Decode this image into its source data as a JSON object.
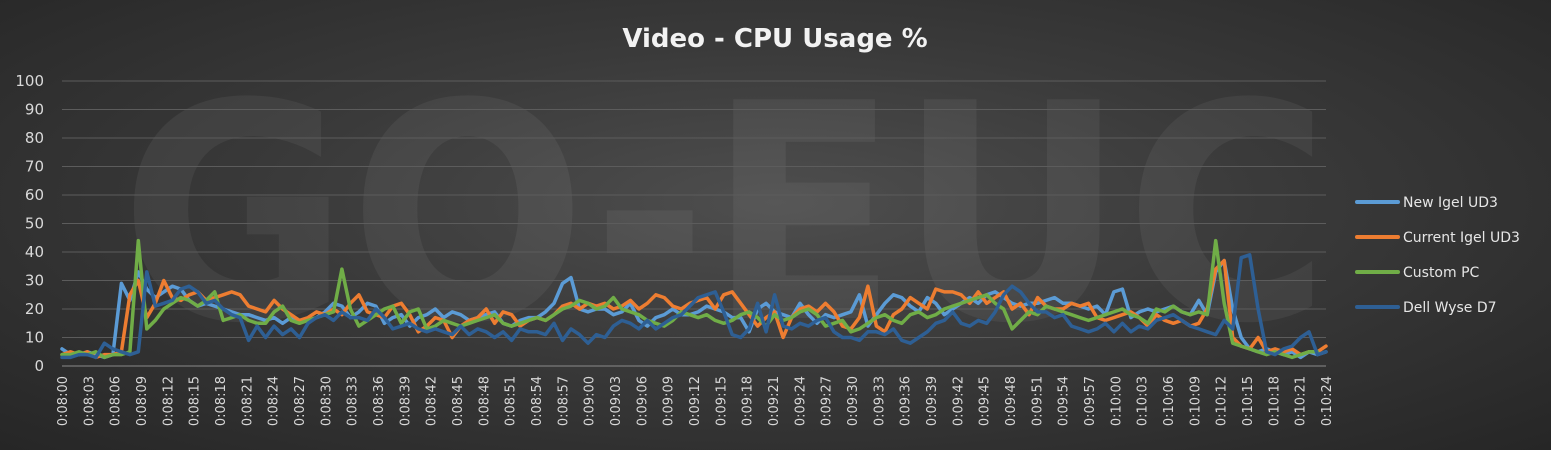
{
  "chart_data": {
    "type": "line",
    "title": "Video - CPU Usage %",
    "watermark": "GO-EUC",
    "xlabel": "",
    "ylabel": "",
    "ylim": [
      0,
      100
    ],
    "yticks": [
      0,
      10,
      20,
      30,
      40,
      50,
      60,
      70,
      80,
      90,
      100
    ],
    "grid": true,
    "legend_position": "right",
    "x_tick_labels": [
      "0:08:00",
      "0:08:03",
      "0:08:06",
      "0:08:09",
      "0:08:12",
      "0:08:15",
      "0:08:18",
      "0:08:21",
      "0:08:24",
      "0:08:27",
      "0:08:30",
      "0:08:33",
      "0:08:36",
      "0:08:39",
      "0:08:42",
      "0:08:45",
      "0:08:48",
      "0:08:51",
      "0:08:54",
      "0:08:57",
      "0:09:00",
      "0:09:03",
      "0:09:06",
      "0:09:09",
      "0:09:12",
      "0:09:15",
      "0:09:18",
      "0:09:21",
      "0:09:24",
      "0:09:27",
      "0:09:30",
      "0:09:33",
      "0:09:36",
      "0:09:39",
      "0:09:42",
      "0:09:45",
      "0:09:48",
      "0:09:51",
      "0:09:54",
      "0:09:57",
      "0:10:00",
      "0:10:03",
      "0:10:06",
      "0:10:09",
      "0:10:12",
      "0:10:15",
      "0:10:18",
      "0:10:21",
      "0:10:24"
    ],
    "series": [
      {
        "name": "New Igel UD3",
        "color": "#5b9bd5",
        "values": [
          6,
          4,
          4,
          5,
          4,
          3,
          4,
          29,
          23,
          33,
          27,
          24,
          26,
          28,
          27,
          23,
          21,
          22,
          21,
          20,
          19,
          18,
          18,
          17,
          16,
          17,
          15,
          17,
          16,
          16,
          17,
          19,
          22,
          21,
          17,
          19,
          22,
          21,
          15,
          17,
          18,
          14,
          17,
          18,
          20,
          17,
          19,
          18,
          16,
          17,
          18,
          19,
          15,
          14,
          16,
          17,
          17,
          19,
          22,
          29,
          31,
          20,
          19,
          20,
          20,
          18,
          19,
          22,
          16,
          14,
          17,
          18,
          20,
          18,
          18,
          19,
          21,
          20,
          19,
          17,
          17,
          12,
          20,
          22,
          19,
          18,
          17,
          22,
          18,
          15,
          18,
          17,
          18,
          19,
          25,
          14,
          18,
          22,
          25,
          24,
          21,
          19,
          24,
          22,
          18,
          20,
          22,
          24,
          22,
          25,
          26,
          24,
          22,
          21,
          22,
          22,
          23,
          24,
          22,
          22,
          21,
          20,
          21,
          18,
          26,
          27,
          17,
          19,
          20,
          19,
          20,
          21,
          19,
          18,
          23,
          18,
          33,
          37,
          20,
          10,
          6,
          5,
          6,
          5,
          4,
          5,
          3,
          5,
          4,
          5
        ]
      },
      {
        "name": "Current Igel UD3",
        "color": "#ed7d31",
        "values": [
          4,
          5,
          4,
          5,
          3,
          4,
          4,
          5,
          25,
          30,
          17,
          22,
          30,
          24,
          23,
          25,
          26,
          23,
          24,
          25,
          26,
          25,
          21,
          20,
          19,
          23,
          20,
          18,
          16,
          17,
          19,
          18,
          20,
          18,
          22,
          25,
          19,
          18,
          17,
          21,
          22,
          18,
          12,
          14,
          17,
          16,
          10,
          14,
          16,
          17,
          20,
          15,
          19,
          18,
          14,
          16,
          17,
          16,
          18,
          21,
          22,
          20,
          22,
          21,
          22,
          20,
          21,
          23,
          20,
          22,
          25,
          24,
          21,
          20,
          22,
          23,
          24,
          20,
          25,
          26,
          22,
          18,
          14,
          17,
          19,
          10,
          17,
          20,
          21,
          19,
          22,
          19,
          14,
          13,
          17,
          28,
          14,
          12,
          18,
          20,
          24,
          22,
          20,
          27,
          26,
          26,
          25,
          22,
          26,
          22,
          24,
          26,
          20,
          22,
          18,
          24,
          21,
          20,
          20,
          22,
          21,
          22,
          17,
          16,
          17,
          18,
          19,
          17,
          14,
          18,
          16,
          15,
          16,
          14,
          15,
          20,
          34,
          37,
          10,
          7,
          6,
          10,
          5,
          6,
          5,
          6,
          4,
          5,
          5,
          7
        ]
      },
      {
        "name": "Custom PC",
        "color": "#70ad47",
        "values": [
          4,
          4,
          5,
          4,
          5,
          3,
          4,
          4,
          5,
          44,
          13,
          16,
          20,
          22,
          24,
          23,
          21,
          23,
          26,
          16,
          17,
          18,
          16,
          15,
          15,
          19,
          21,
          16,
          15,
          16,
          17,
          18,
          19,
          34,
          20,
          14,
          16,
          18,
          20,
          21,
          15,
          19,
          20,
          13,
          14,
          16,
          15,
          14,
          15,
          16,
          17,
          18,
          15,
          14,
          15,
          16,
          17,
          16,
          18,
          20,
          21,
          23,
          22,
          20,
          21,
          24,
          20,
          19,
          18,
          16,
          15,
          14,
          16,
          19,
          18,
          17,
          18,
          16,
          15,
          16,
          18,
          19,
          17,
          14,
          18,
          16,
          17,
          19,
          20,
          18,
          14,
          15,
          16,
          12,
          13,
          15,
          17,
          18,
          16,
          15,
          18,
          19,
          17,
          18,
          20,
          21,
          22,
          23,
          24,
          25,
          22,
          20,
          13,
          16,
          19,
          18,
          21,
          20,
          19,
          18,
          17,
          16,
          17,
          18,
          19,
          20,
          18,
          17,
          15,
          20,
          19,
          21,
          19,
          18,
          19,
          18,
          44,
          22,
          8,
          7,
          6,
          5,
          4,
          5,
          4,
          3,
          4,
          5,
          5
        ]
      },
      {
        "name": "Dell Wyse D7",
        "color": "#2e5f94",
        "values": [
          3,
          3,
          4,
          4,
          3,
          8,
          6,
          5,
          4,
          5,
          33,
          21,
          22,
          23,
          27,
          28,
          26,
          22,
          23,
          20,
          18,
          17,
          9,
          14,
          10,
          14,
          11,
          13,
          10,
          15,
          17,
          18,
          16,
          19,
          17,
          17,
          16,
          20,
          17,
          13,
          14,
          15,
          13,
          12,
          13,
          12,
          11,
          14,
          11,
          13,
          12,
          10,
          12,
          9,
          13,
          12,
          12,
          11,
          15,
          9,
          13,
          11,
          8,
          11,
          10,
          14,
          16,
          15,
          13,
          16,
          13,
          15,
          17,
          18,
          21,
          24,
          25,
          26,
          19,
          11,
          10,
          13,
          22,
          12,
          25,
          14,
          13,
          15,
          14,
          16,
          17,
          12,
          10,
          10,
          9,
          12,
          12,
          11,
          13,
          9,
          8,
          10,
          12,
          15,
          16,
          19,
          15,
          14,
          16,
          15,
          19,
          25,
          28,
          26,
          22,
          19,
          19,
          17,
          18,
          14,
          13,
          12,
          13,
          15,
          12,
          15,
          12,
          14,
          13,
          16,
          17,
          18,
          16,
          14,
          13,
          12,
          11,
          16,
          13,
          38,
          39,
          20,
          5,
          4,
          6,
          7,
          10,
          12,
          4,
          5
        ]
      }
    ]
  }
}
